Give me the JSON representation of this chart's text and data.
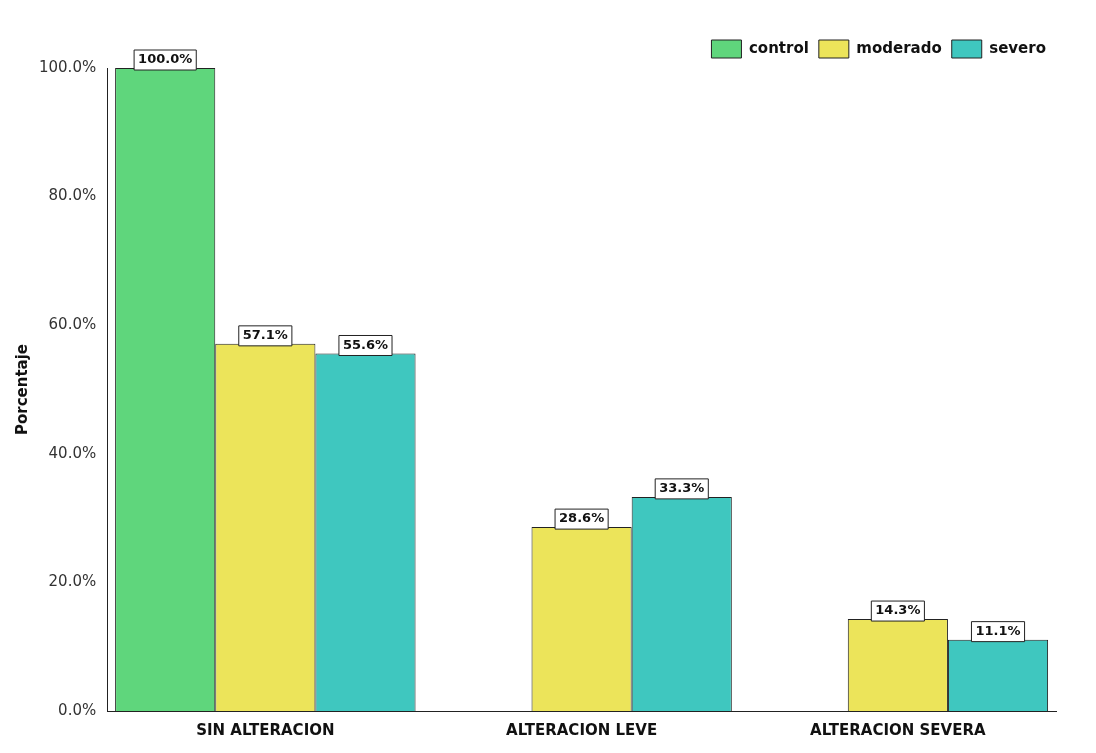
{
  "chart_data": {
    "type": "bar",
    "ylabel": "Porcentaje",
    "categories": [
      "SIN ALTERACION",
      "ALTERACION LEVE",
      "ALTERACION SEVERA"
    ],
    "series": [
      {
        "name": "control",
        "color": "#5fd67c",
        "values": [
          100,
          0,
          0
        ],
        "value_labels": [
          "100.0%",
          null,
          null
        ]
      },
      {
        "name": "moderado",
        "color": "#ece45a",
        "values": [
          57.1,
          28.6,
          14.3
        ],
        "value_labels": [
          "57.1%",
          "28.6%",
          "14.3%"
        ]
      },
      {
        "name": "severo",
        "color": "#3fc7bf",
        "values": [
          55.6,
          33.3,
          11.1
        ],
        "value_labels": [
          "55.6%",
          "33.3%",
          "11.1%"
        ]
      }
    ],
    "ylim": [
      0,
      100
    ],
    "yticks": [
      {
        "value": 0,
        "label": "0.0%"
      },
      {
        "value": 20,
        "label": "20.0%"
      },
      {
        "value": 40,
        "label": "40.0%"
      },
      {
        "value": 60,
        "label": "60.0%"
      },
      {
        "value": 80,
        "label": "80.0%"
      },
      {
        "value": 100,
        "label": "100.0%"
      }
    ],
    "grid": false,
    "legend": "top right"
  }
}
